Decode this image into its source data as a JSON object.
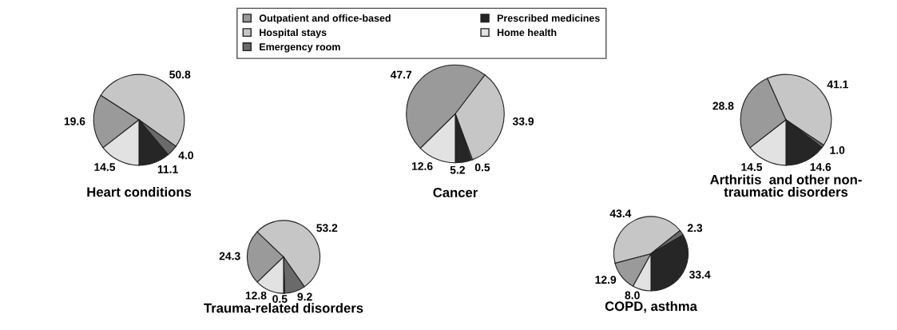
{
  "chart_data": [
    {
      "type": "pie",
      "title": "Heart conditions",
      "categories": [
        "Outpatient and office-based",
        "Hospital stays",
        "Emergency room",
        "Prescribed medicines",
        "Home health"
      ],
      "values": [
        19.6,
        50.8,
        4.0,
        11.1,
        14.5
      ],
      "value_labels": [
        "19.6",
        "50.8",
        "4.0",
        "11.1",
        "14.5"
      ],
      "colors": [
        "#9a9a9a",
        "#c6c6c6",
        "#6a6a6a",
        "#262626",
        "#e2e2e2"
      ],
      "legend": "top"
    },
    {
      "type": "pie",
      "title": "Cancer",
      "categories": [
        null,
        null,
        null,
        null,
        null
      ],
      "values": [
        47.7,
        33.9,
        0.5,
        5.2,
        12.6
      ],
      "value_labels": [
        "47.7",
        "33.9",
        "0.5",
        "5.2",
        "12.6"
      ],
      "colors": [
        "#9a9a9a",
        "#c6c6c6",
        "#6a6a6a",
        "#262626",
        "#e2e2e2"
      ]
    },
    {
      "type": "pie",
      "title": "Arthritis  and other non-\ntraumatic disorders",
      "categories": [
        null,
        null,
        null,
        null,
        null
      ],
      "values": [
        28.8,
        41.1,
        1.0,
        14.6,
        14.5
      ],
      "value_labels": [
        "28.8",
        "41.1",
        "1.0",
        "14.6",
        "14.5"
      ],
      "colors": [
        "#9a9a9a",
        "#c6c6c6",
        "#6a6a6a",
        "#262626",
        "#e2e2e2"
      ]
    },
    {
      "type": "pie",
      "title": "Trauma-related disorders",
      "categories": [
        null,
        null,
        null,
        null,
        null
      ],
      "values": [
        24.3,
        53.2,
        9.2,
        0.5,
        12.8
      ],
      "value_labels": [
        "24.3",
        "53.2",
        "9.2",
        "0.5",
        "12.8"
      ],
      "colors": [
        "#9a9a9a",
        "#c6c6c6",
        "#6a6a6a",
        "#262626",
        "#e2e2e2"
      ]
    },
    {
      "type": "pie",
      "title": "COPD, asthma",
      "categories": [
        null,
        null,
        null,
        null,
        null
      ],
      "values": [
        12.9,
        43.4,
        2.3,
        33.4,
        8.0
      ],
      "value_labels": [
        "12.9",
        "43.4",
        "2.3",
        "33.4",
        "8.0"
      ],
      "colors": [
        "#9a9a9a",
        "#c6c6c6",
        "#6a6a6a",
        "#262626",
        "#e2e2e2"
      ]
    }
  ]
}
